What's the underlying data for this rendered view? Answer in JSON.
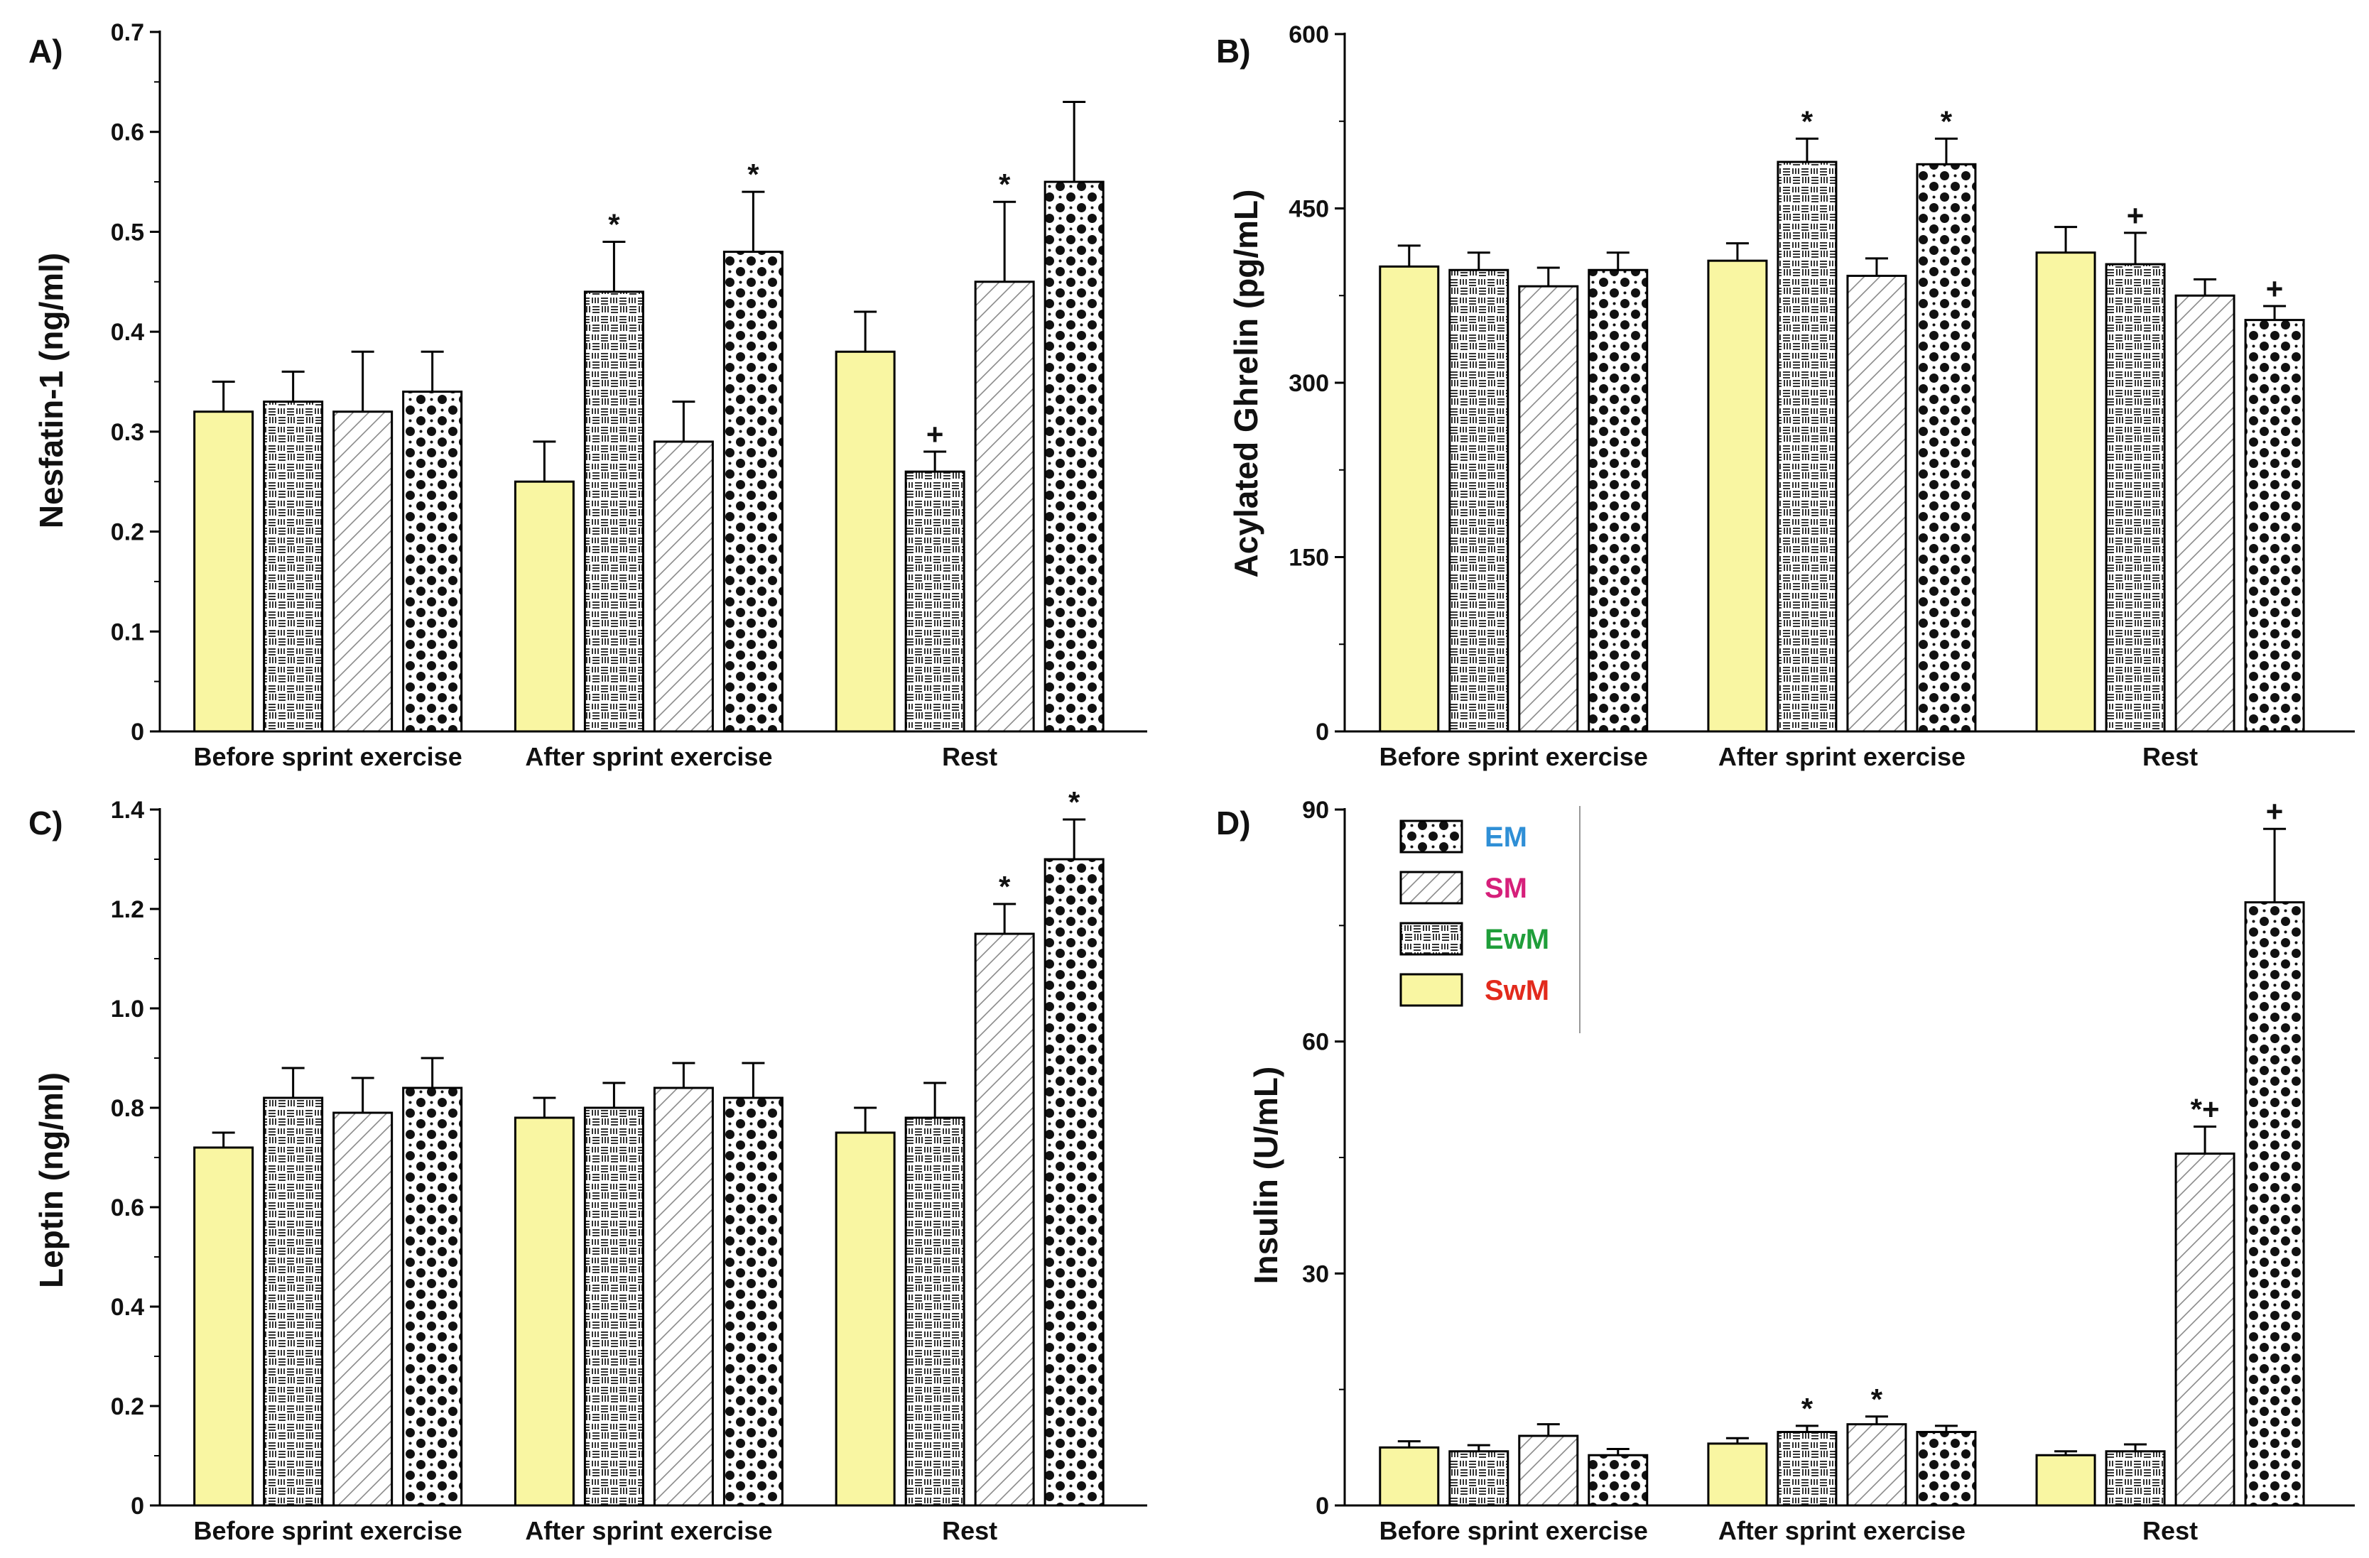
{
  "colors": {
    "SwM": "#f9f6a2",
    "legend_text": {
      "EM": "#2f8fd6",
      "SM": "#d61f7a",
      "EwM": "#1f9e3a",
      "SwM": "#e22a1c"
    }
  },
  "chart_data": [
    {
      "type": "bar",
      "panel": "A)",
      "ylabel": "Nesfatin-1 (ng/ml)",
      "ylim": [
        0,
        0.7
      ],
      "yticks": [
        "0",
        "0.1",
        "0.2",
        "0.3",
        "0.4",
        "0.5",
        "0.6",
        "0.7"
      ],
      "categories": [
        "Before sprint exercise",
        "After sprint exercise",
        "Rest"
      ],
      "series": [
        {
          "name": "SwM",
          "values": [
            0.32,
            0.25,
            0.38
          ],
          "errors": [
            0.03,
            0.04,
            0.04
          ],
          "marks": [
            "",
            "",
            ""
          ]
        },
        {
          "name": "EwM",
          "values": [
            0.33,
            0.44,
            0.26
          ],
          "errors": [
            0.03,
            0.05,
            0.02
          ],
          "marks": [
            "",
            "*",
            "+"
          ]
        },
        {
          "name": "SM",
          "values": [
            0.32,
            0.29,
            0.45
          ],
          "errors": [
            0.06,
            0.04,
            0.08
          ],
          "marks": [
            "",
            "",
            "*"
          ]
        },
        {
          "name": "EM",
          "values": [
            0.34,
            0.48,
            0.55
          ],
          "errors": [
            0.04,
            0.06,
            0.08
          ],
          "marks": [
            "",
            "*",
            ""
          ]
        }
      ]
    },
    {
      "type": "bar",
      "panel": "B)",
      "ylabel": "Acylated Ghrelin (pg/mL)",
      "ylim": [
        0,
        600
      ],
      "yticks": [
        "0",
        "150",
        "300",
        "450",
        "600"
      ],
      "categories": [
        "Before sprint exercise",
        "After sprint exercise",
        "Rest"
      ],
      "series": [
        {
          "name": "SwM",
          "values": [
            400,
            405,
            412
          ],
          "errors": [
            18,
            15,
            22
          ],
          "marks": [
            "",
            "",
            ""
          ]
        },
        {
          "name": "EwM",
          "values": [
            397,
            490,
            402
          ],
          "errors": [
            15,
            20,
            27
          ],
          "marks": [
            "",
            "*",
            "+"
          ]
        },
        {
          "name": "SM",
          "values": [
            383,
            392,
            375
          ],
          "errors": [
            16,
            15,
            14
          ],
          "marks": [
            "",
            "",
            ""
          ]
        },
        {
          "name": "EM",
          "values": [
            397,
            488,
            354
          ],
          "errors": [
            15,
            22,
            12
          ],
          "marks": [
            "",
            "*",
            "+"
          ]
        }
      ]
    },
    {
      "type": "bar",
      "panel": "C)",
      "ylabel": "Leptin (ng/ml)",
      "ylim": [
        0,
        1.4
      ],
      "yticks": [
        "0",
        "0.2",
        "0.4",
        "0.6",
        "0.8",
        "1.0",
        "1.2",
        "1.4"
      ],
      "categories": [
        "Before sprint exercise",
        "After sprint exercise",
        "Rest"
      ],
      "series": [
        {
          "name": "SwM",
          "values": [
            0.72,
            0.78,
            0.75
          ],
          "errors": [
            0.03,
            0.04,
            0.05
          ],
          "marks": [
            "",
            "",
            ""
          ]
        },
        {
          "name": "EwM",
          "values": [
            0.82,
            0.8,
            0.78
          ],
          "errors": [
            0.06,
            0.05,
            0.07
          ],
          "marks": [
            "",
            "",
            ""
          ]
        },
        {
          "name": "SM",
          "values": [
            0.79,
            0.84,
            1.15
          ],
          "errors": [
            0.07,
            0.05,
            0.06
          ],
          "marks": [
            "",
            "",
            "*"
          ]
        },
        {
          "name": "EM",
          "values": [
            0.84,
            0.82,
            1.3
          ],
          "errors": [
            0.06,
            0.07,
            0.08
          ],
          "marks": [
            "",
            "",
            "*"
          ]
        }
      ]
    },
    {
      "type": "bar",
      "panel": "D)",
      "ylabel": "Insulin (U/mL)",
      "ylim": [
        0,
        90
      ],
      "yticks": [
        "0",
        "30",
        "60",
        "90"
      ],
      "categories": [
        "Before sprint exercise",
        "After sprint exercise",
        "Rest"
      ],
      "series": [
        {
          "name": "SwM",
          "values": [
            7.5,
            8.0,
            6.5
          ],
          "errors": [
            0.8,
            0.7,
            0.5
          ],
          "marks": [
            "",
            "",
            ""
          ]
        },
        {
          "name": "EwM",
          "values": [
            7.0,
            9.5,
            7.0
          ],
          "errors": [
            0.8,
            0.8,
            0.9
          ],
          "marks": [
            "",
            "*",
            ""
          ]
        },
        {
          "name": "SM",
          "values": [
            9.0,
            10.5,
            45.5
          ],
          "errors": [
            1.5,
            1.0,
            3.5
          ],
          "marks": [
            "",
            "*",
            "*+"
          ]
        },
        {
          "name": "EM",
          "values": [
            6.5,
            9.5,
            78.0
          ],
          "errors": [
            0.8,
            0.8,
            9.5
          ],
          "marks": [
            "",
            "",
            "+"
          ]
        }
      ],
      "legend": {
        "position": "top-left",
        "entries": [
          "EM",
          "SM",
          "EwM",
          "SwM"
        ]
      }
    }
  ]
}
